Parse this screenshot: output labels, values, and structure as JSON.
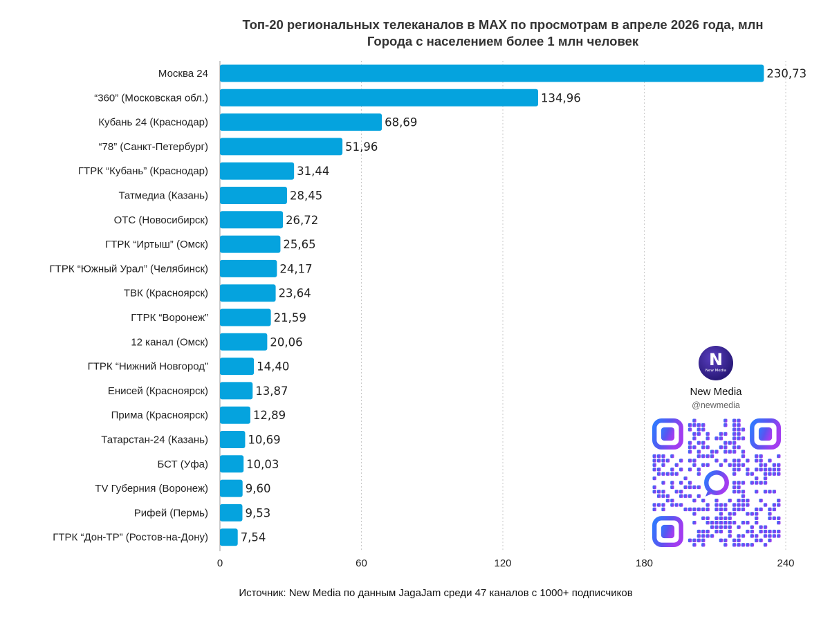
{
  "chart_data": {
    "type": "bar",
    "orientation": "horizontal",
    "title": "Топ-20 региональных телеканалов в MAX по просмотрам в апреле 2026 года, млн",
    "subtitle": "Города с населением более 1 млн человек",
    "categories": [
      "Москва 24",
      "“360” (Московская обл.)",
      "Кубань 24 (Краснодар)",
      "“78” (Санкт-Петербург)",
      "ГТРК “Кубань” (Краснодар)",
      "Татмедиа (Казань)",
      "ОТС (Новосибирск)",
      "ГТРК “Иртыш” (Омск)",
      "ГТРК “Южный Урал” (Челябинск)",
      "ТВК (Красноярск)",
      "ГТРК “Воронеж”",
      "12 канал (Омск)",
      "ГТРК “Нижний Новгород”",
      "Енисей (Красноярск)",
      "Прима (Красноярск)",
      "Татарстан-24 (Казань)",
      "БСТ (Уфа)",
      "TV Губерния (Воронеж)",
      "Рифей (Пермь)",
      "ГТРК “Дон-ТР” (Ростов-на-Дону)"
    ],
    "values": [
      230.73,
      134.96,
      68.69,
      51.96,
      31.44,
      28.45,
      26.72,
      25.65,
      24.17,
      23.64,
      21.59,
      20.06,
      14.4,
      13.87,
      12.89,
      10.69,
      10.03,
      9.6,
      9.53,
      7.54
    ],
    "value_labels": [
      "230,73",
      "134,96",
      "68,69",
      "51,96",
      "31,44",
      "28,45",
      "26,72",
      "25,65",
      "24,17",
      "23,64",
      "21,59",
      "20,06",
      "14,40",
      "13,87",
      "12,89",
      "10,69",
      "10,03",
      "9,60",
      "9,53",
      "7,54"
    ],
    "xlim": [
      0,
      240
    ],
    "xticks": [
      0,
      60,
      120,
      180,
      240
    ],
    "grid": true,
    "bar_color": "#05a3de",
    "source": "Источник: New Media по данным JagaJam среди 47 каналов с 1000+ подписчиков"
  },
  "brand": {
    "logo_glyph": "N",
    "logo_text": "New Media",
    "name": "New Media",
    "handle": "@newmedia",
    "logo_color": "#2a1a7a"
  }
}
